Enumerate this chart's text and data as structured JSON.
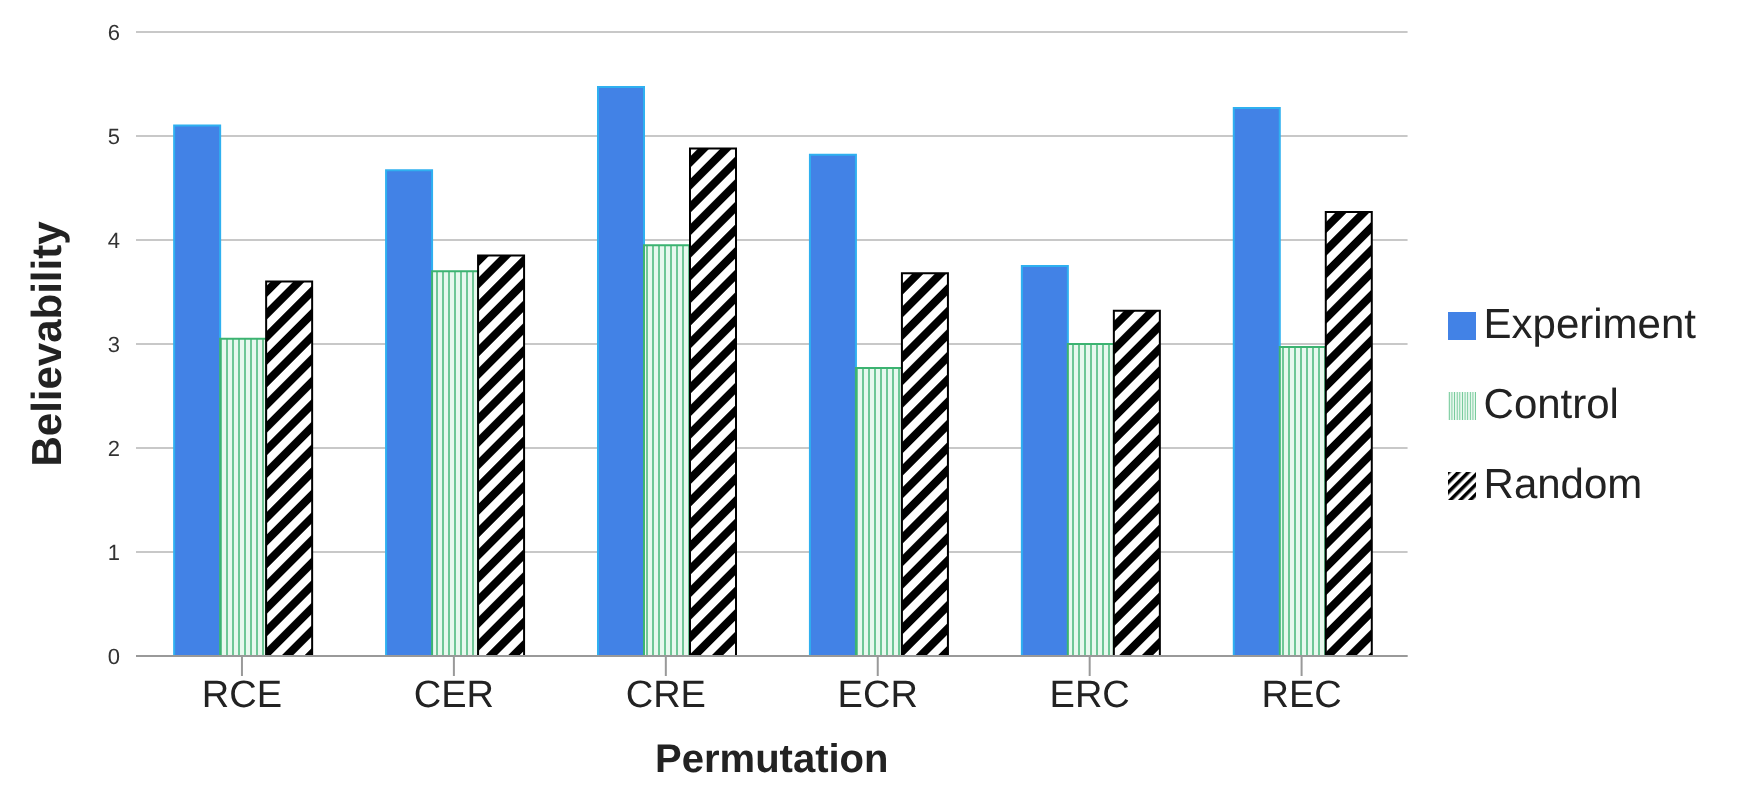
{
  "chart_data": {
    "type": "bar",
    "xlabel": "Permutation",
    "ylabel": "Believability",
    "categories": [
      "RCE",
      "CER",
      "CRE",
      "ECR",
      "ERC",
      "REC"
    ],
    "series": [
      {
        "name": "Experiment",
        "color": "#4282e6",
        "values": [
          5.1,
          4.67,
          5.47,
          4.82,
          3.75,
          5.27
        ]
      },
      {
        "name": "Control",
        "color": "#3cb371",
        "values": [
          3.05,
          3.7,
          3.95,
          2.77,
          3.0,
          2.97
        ]
      },
      {
        "name": "Random",
        "color": "#000000",
        "values": [
          3.6,
          3.85,
          4.88,
          3.68,
          3.32,
          4.27
        ]
      }
    ],
    "ylim": [
      0,
      6
    ],
    "yticks": [
      0,
      1,
      2,
      3,
      4,
      5,
      6
    ],
    "grid": "y",
    "legend": "right"
  }
}
